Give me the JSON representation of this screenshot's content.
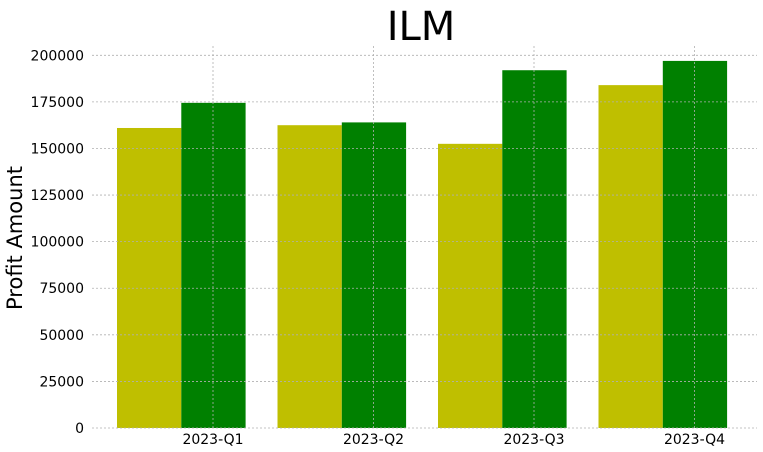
{
  "chart_data": {
    "type": "bar",
    "title": "ILM",
    "xlabel": "",
    "ylabel": "Profit Amount",
    "categories": [
      "2023-Q1",
      "2023-Q2",
      "2023-Q3",
      "2023-Q4"
    ],
    "series": [
      {
        "color": "#bfbf00",
        "values": [
          161000,
          162500,
          152500,
          184000
        ]
      },
      {
        "color": "#008000",
        "values": [
          174500,
          164000,
          192000,
          197000
        ]
      }
    ],
    "ylim": [
      0,
      205000
    ],
    "yticks": [
      0,
      25000,
      50000,
      75000,
      100000,
      125000,
      150000,
      175000,
      200000
    ],
    "grid": true,
    "legend": "none"
  }
}
